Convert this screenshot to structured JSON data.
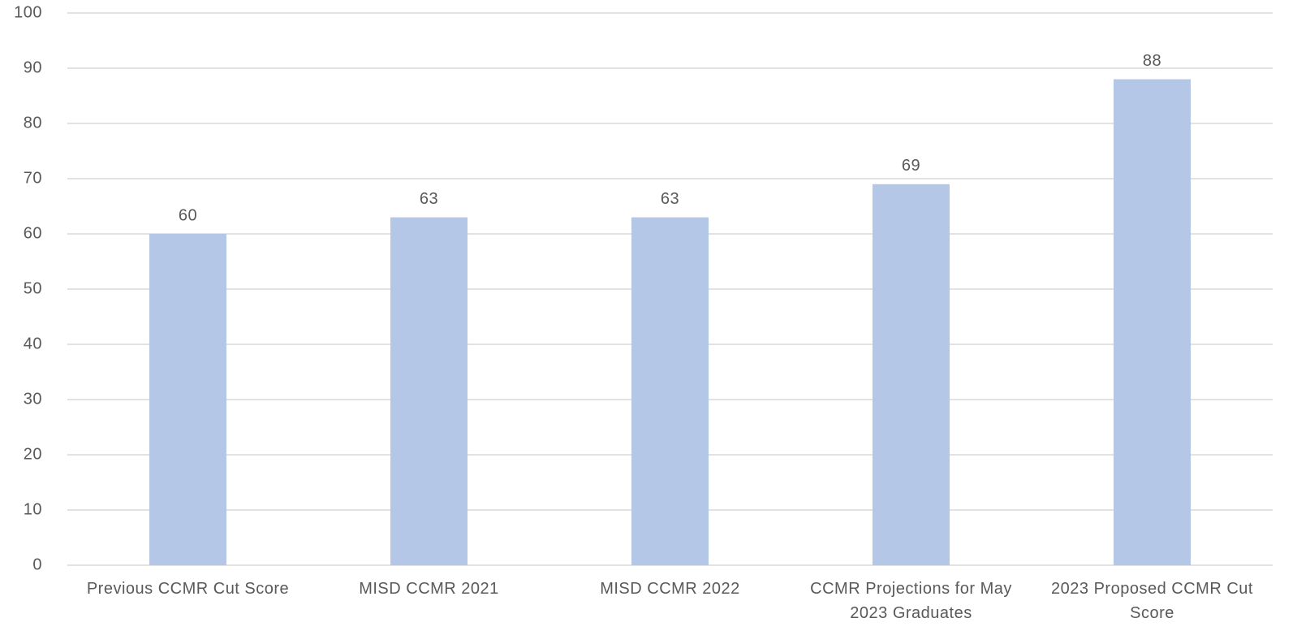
{
  "chart_data": {
    "type": "bar",
    "categories": [
      "Previous CCMR Cut Score",
      "MISD CCMR 2021",
      "MISD CCMR 2022",
      "CCMR Projections for May 2023 Graduates",
      "2023 Proposed CCMR Cut Score"
    ],
    "values": [
      60,
      63,
      63,
      69,
      88
    ],
    "color": "#b4c7e7",
    "ylim": [
      0,
      100
    ],
    "yticks": [
      0,
      10,
      20,
      30,
      40,
      50,
      60,
      70,
      80,
      90,
      100
    ],
    "grid": true
  }
}
